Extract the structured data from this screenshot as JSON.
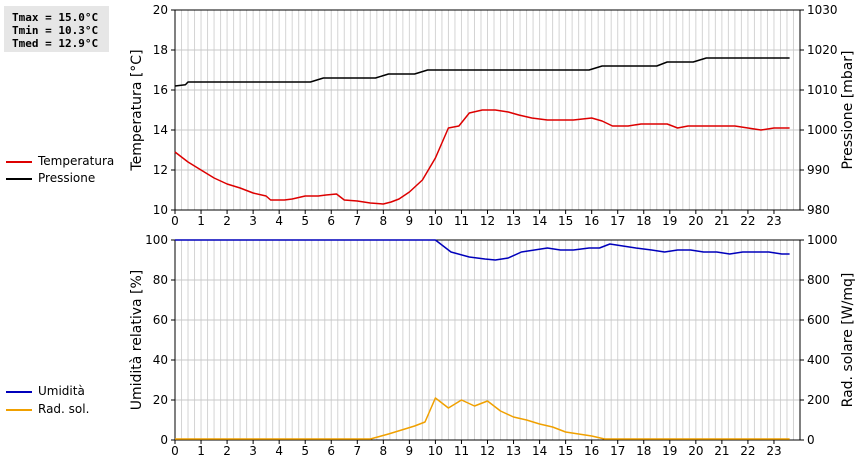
{
  "stats": {
    "tmax": "Tmax = 15.0°C",
    "tmin": "Tmin = 10.3°C",
    "tmed": "Tmed = 12.9°C"
  },
  "legend_top": [
    {
      "label": "Temperatura",
      "color": "#dd0000"
    },
    {
      "label": "Pressione",
      "color": "#000000"
    }
  ],
  "legend_bottom": [
    {
      "label": "Umidità",
      "color": "#0000bb"
    },
    {
      "label": "Rad. sol.",
      "color": "#f0a000"
    }
  ],
  "chart_data": [
    {
      "type": "line",
      "ylabel": "Temperatura [°C]",
      "y2label": "Pressione [mbar]",
      "xlim": [
        0,
        24
      ],
      "ylim": [
        10,
        20
      ],
      "y2lim": [
        980,
        1030
      ],
      "x_ticks": [
        "0",
        "1",
        "2",
        "3",
        "4",
        "5",
        "6",
        "7",
        "8",
        "9",
        "10",
        "11",
        "12",
        "13",
        "14",
        "15",
        "16",
        "17",
        "18",
        "19",
        "20",
        "21",
        "22",
        "23"
      ],
      "y_ticks": [
        "10",
        "12",
        "14",
        "16",
        "18",
        "20"
      ],
      "y2_ticks": [
        "980",
        "990",
        "1000",
        "1010",
        "1020",
        "1030"
      ],
      "grid": true,
      "series": [
        {
          "name": "Temperatura",
          "color": "#dd0000",
          "axis": "left",
          "points": [
            [
              0,
              12.9
            ],
            [
              0.5,
              12.4
            ],
            [
              1,
              12.0
            ],
            [
              1.5,
              11.6
            ],
            [
              2,
              11.3
            ],
            [
              2.5,
              11.1
            ],
            [
              3,
              10.85
            ],
            [
              3.5,
              10.7
            ],
            [
              3.67,
              10.5
            ],
            [
              4.2,
              10.5
            ],
            [
              4.5,
              10.55
            ],
            [
              5,
              10.7
            ],
            [
              5.5,
              10.7
            ],
            [
              5.8,
              10.75
            ],
            [
              6.2,
              10.8
            ],
            [
              6.5,
              10.5
            ],
            [
              7,
              10.45
            ],
            [
              7.5,
              10.35
            ],
            [
              8,
              10.3
            ],
            [
              8.3,
              10.4
            ],
            [
              8.6,
              10.55
            ],
            [
              9,
              10.9
            ],
            [
              9.5,
              11.5
            ],
            [
              10,
              12.6
            ],
            [
              10.5,
              14.1
            ],
            [
              10.9,
              14.2
            ],
            [
              11.3,
              14.85
            ],
            [
              11.8,
              15.0
            ],
            [
              12.3,
              15.0
            ],
            [
              12.8,
              14.9
            ],
            [
              13.2,
              14.75
            ],
            [
              13.7,
              14.6
            ],
            [
              14.3,
              14.5
            ],
            [
              15.3,
              14.5
            ],
            [
              16,
              14.6
            ],
            [
              16.4,
              14.45
            ],
            [
              16.8,
              14.2
            ],
            [
              17.4,
              14.2
            ],
            [
              17.9,
              14.3
            ],
            [
              18.9,
              14.3
            ],
            [
              19.3,
              14.1
            ],
            [
              19.7,
              14.2
            ],
            [
              21.5,
              14.2
            ],
            [
              22,
              14.1
            ],
            [
              22.5,
              14.0
            ],
            [
              23,
              14.1
            ],
            [
              23.6,
              14.1
            ]
          ]
        },
        {
          "name": "Pressione",
          "color": "#000000",
          "axis": "right",
          "points": [
            [
              0,
              1011
            ],
            [
              0.4,
              1011.3
            ],
            [
              0.5,
              1012
            ],
            [
              5.2,
              1012
            ],
            [
              5.7,
              1013
            ],
            [
              7.7,
              1013
            ],
            [
              8.2,
              1014
            ],
            [
              9.2,
              1014
            ],
            [
              9.7,
              1015
            ],
            [
              15.9,
              1015
            ],
            [
              16.4,
              1016
            ],
            [
              18.5,
              1016
            ],
            [
              18.9,
              1017
            ],
            [
              19.9,
              1017
            ],
            [
              20.4,
              1018
            ],
            [
              23.6,
              1018
            ]
          ]
        }
      ]
    },
    {
      "type": "line",
      "ylabel": "Umidità relativa [%]",
      "y2label": "Rad. solare [W/mq]",
      "xlim": [
        0,
        24
      ],
      "ylim": [
        0,
        100
      ],
      "y2lim": [
        0,
        1000
      ],
      "x_ticks": [
        "0",
        "1",
        "2",
        "3",
        "4",
        "5",
        "6",
        "7",
        "8",
        "9",
        "10",
        "11",
        "12",
        "13",
        "14",
        "15",
        "16",
        "17",
        "18",
        "19",
        "20",
        "21",
        "22",
        "23"
      ],
      "y_ticks": [
        "0",
        "20",
        "40",
        "60",
        "80",
        "100"
      ],
      "y2_ticks": [
        "0",
        "200",
        "400",
        "600",
        "800",
        "1000"
      ],
      "grid": true,
      "series": [
        {
          "name": "Umidità",
          "color": "#0000bb",
          "axis": "left",
          "points": [
            [
              0,
              100
            ],
            [
              10,
              100
            ],
            [
              10.6,
              94
            ],
            [
              11.3,
              91.5
            ],
            [
              11.9,
              90.5
            ],
            [
              12.3,
              90
            ],
            [
              12.8,
              91
            ],
            [
              13.3,
              94
            ],
            [
              13.8,
              95
            ],
            [
              14.3,
              96
            ],
            [
              14.8,
              95
            ],
            [
              15.3,
              95
            ],
            [
              15.9,
              96
            ],
            [
              16.3,
              96
            ],
            [
              16.7,
              98
            ],
            [
              17.2,
              97
            ],
            [
              17.7,
              96
            ],
            [
              18.3,
              95
            ],
            [
              18.8,
              94
            ],
            [
              19.3,
              95
            ],
            [
              19.8,
              95
            ],
            [
              20.3,
              94
            ],
            [
              20.8,
              94
            ],
            [
              21.3,
              93
            ],
            [
              21.8,
              94
            ],
            [
              22.3,
              94
            ],
            [
              22.8,
              94
            ],
            [
              23.3,
              93
            ],
            [
              23.6,
              93
            ]
          ]
        },
        {
          "name": "Rad. sol.",
          "color": "#f0a000",
          "axis": "right",
          "points": [
            [
              0,
              5
            ],
            [
              7.5,
              5
            ],
            [
              8.2,
              30
            ],
            [
              8.7,
              50
            ],
            [
              9.2,
              70
            ],
            [
              9.6,
              90
            ],
            [
              10,
              210
            ],
            [
              10.5,
              160
            ],
            [
              11,
              200
            ],
            [
              11.5,
              170
            ],
            [
              12,
              195
            ],
            [
              12.5,
              145
            ],
            [
              13,
              115
            ],
            [
              13.5,
              100
            ],
            [
              14,
              80
            ],
            [
              14.5,
              65
            ],
            [
              15,
              40
            ],
            [
              15.5,
              30
            ],
            [
              16,
              20
            ],
            [
              16.5,
              5
            ],
            [
              23.6,
              5
            ]
          ]
        }
      ]
    }
  ]
}
